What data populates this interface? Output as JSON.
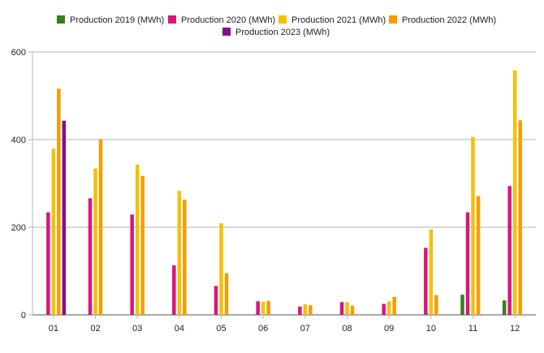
{
  "chart_data": {
    "type": "bar",
    "title": "",
    "xlabel": "",
    "ylabel": "",
    "categories": [
      "01",
      "02",
      "03",
      "04",
      "05",
      "06",
      "07",
      "08",
      "09",
      "10",
      "11",
      "12"
    ],
    "ylim": [
      0,
      600
    ],
    "yticks": [
      0,
      200,
      400,
      600
    ],
    "grid": true,
    "legend_position": "top",
    "series": [
      {
        "name": "Production 2019 (MWh)",
        "color": "#3a7d1e",
        "values": [
          null,
          null,
          null,
          null,
          null,
          null,
          null,
          null,
          null,
          null,
          46,
          33
        ]
      },
      {
        "name": "Production 2020 (MWh)",
        "color": "#d9157f",
        "values": [
          234,
          266,
          229,
          113,
          66,
          31,
          19,
          29,
          25,
          153,
          234,
          294
        ]
      },
      {
        "name": "Production 2021 (MWh)",
        "color": "#f6c100",
        "values": [
          379,
          334,
          343,
          283,
          209,
          30,
          24,
          29,
          31,
          195,
          406,
          558
        ]
      },
      {
        "name": "Production 2022 (MWh)",
        "color": "#f99b00",
        "values": [
          516,
          401,
          317,
          263,
          95,
          32,
          22,
          21,
          41,
          45,
          271,
          444
        ]
      },
      {
        "name": "Production 2023 (MWh)",
        "color": "#8a0a8a",
        "values": [
          443,
          null,
          null,
          null,
          null,
          null,
          null,
          null,
          null,
          null,
          null,
          null
        ]
      }
    ]
  }
}
